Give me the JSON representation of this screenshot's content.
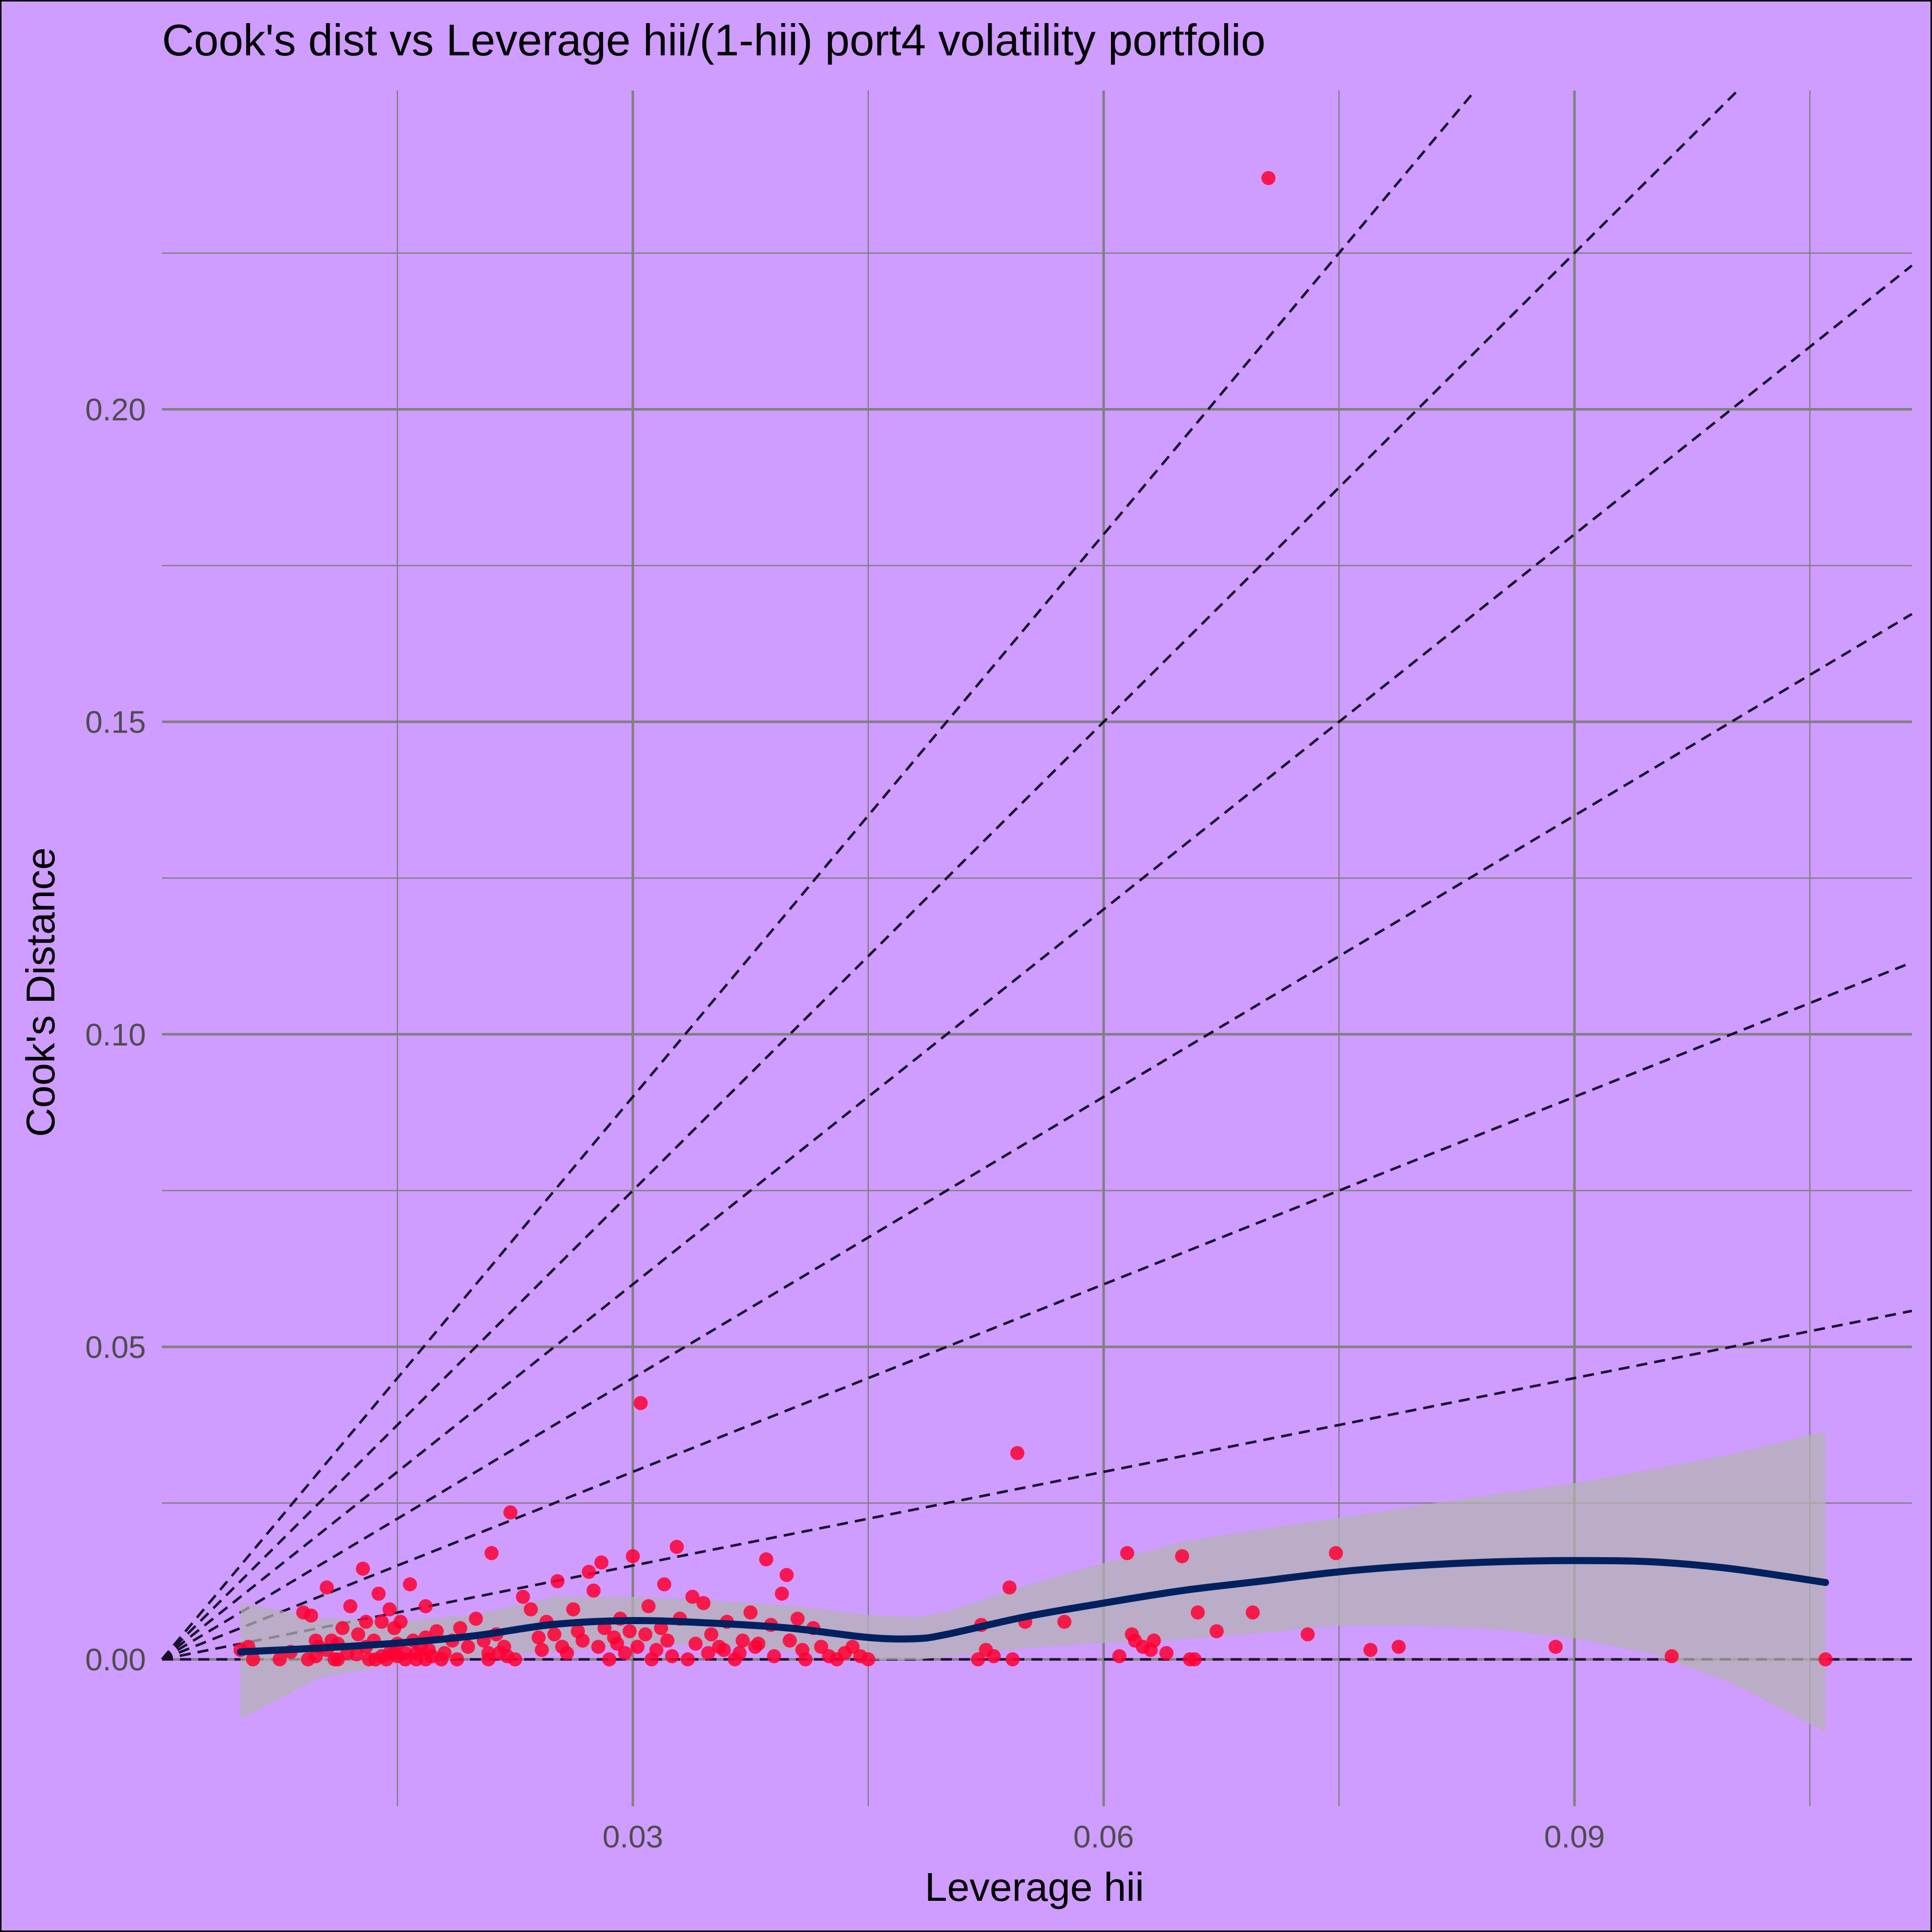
{
  "chart_data": {
    "type": "scatter",
    "title": "Cook's dist vs Leverage hii/(1-hii) port4 volatility portfolio",
    "xlabel": "Leverage hii",
    "ylabel": "Cook's Distance",
    "xlim": [
      0.0,
      0.1115
    ],
    "ylim": [
      -0.0235,
      0.251
    ],
    "x_ticks": [
      0.03,
      0.06,
      0.09
    ],
    "x_tick_labels": [
      "0.03",
      "0.06",
      "0.09"
    ],
    "y_ticks": [
      0.0,
      0.05,
      0.1,
      0.15,
      0.2
    ],
    "y_tick_labels": [
      "0.00",
      "0.05",
      "0.10",
      "0.15",
      "0.20"
    ],
    "grid": true,
    "legend": "none",
    "colors": {
      "background": "#cf9cff",
      "grid": "#808080",
      "points": "#ff0033",
      "smooth_line": "#002060",
      "confidence_band": "#b3b3b3",
      "reference_lines": "#1a0f2e"
    },
    "reference_slopes": [
      0.5,
      1,
      1.5,
      2,
      2.5,
      3
    ],
    "smooth_line": {
      "x": [
        0.005,
        0.01,
        0.015,
        0.02,
        0.025,
        0.03,
        0.035,
        0.04,
        0.045,
        0.048,
        0.05,
        0.055,
        0.06,
        0.065,
        0.07,
        0.075,
        0.08,
        0.085,
        0.09,
        0.095,
        0.1,
        0.106
      ],
      "y": [
        0.0012,
        0.0018,
        0.0026,
        0.0038,
        0.0056,
        0.0062,
        0.0058,
        0.005,
        0.0035,
        0.0033,
        0.004,
        0.0068,
        0.009,
        0.011,
        0.0125,
        0.014,
        0.015,
        0.0156,
        0.0158,
        0.0156,
        0.0145,
        0.0123
      ],
      "band_upper": [
        0.009,
        0.0066,
        0.006,
        0.0072,
        0.01,
        0.01,
        0.0094,
        0.0086,
        0.0071,
        0.0067,
        0.0076,
        0.0118,
        0.0154,
        0.0188,
        0.0208,
        0.0226,
        0.0246,
        0.0264,
        0.0282,
        0.0304,
        0.0328,
        0.0365
      ],
      "band_lower": [
        -0.0095,
        -0.003,
        -0.0008,
        0.0004,
        0.0012,
        0.0024,
        0.0022,
        0.0014,
        -0.0001,
        -0.0001,
        0.0004,
        0.0018,
        0.0026,
        0.0032,
        0.0042,
        0.0054,
        0.0054,
        0.0048,
        0.0034,
        0.0008,
        -0.0038,
        -0.0116
      ]
    },
    "points": {
      "x": [
        0.005,
        0.0055,
        0.0058,
        0.0075,
        0.0082,
        0.009,
        0.0093,
        0.0095,
        0.0098,
        0.01,
        0.0105,
        0.0108,
        0.011,
        0.0112,
        0.0115,
        0.0118,
        0.012,
        0.0125,
        0.0128,
        0.013,
        0.0132,
        0.0135,
        0.0138,
        0.014,
        0.0143,
        0.0145,
        0.0148,
        0.015,
        0.0152,
        0.0155,
        0.0158,
        0.016,
        0.0162,
        0.0165,
        0.0168,
        0.017,
        0.0172,
        0.0175,
        0.0178,
        0.018,
        0.0185,
        0.0188,
        0.019,
        0.0195,
        0.02,
        0.0205,
        0.0208,
        0.021,
        0.0213,
        0.0215,
        0.0218,
        0.022,
        0.0222,
        0.0225,
        0.023,
        0.0235,
        0.024,
        0.0242,
        0.0245,
        0.025,
        0.0252,
        0.0255,
        0.0258,
        0.0262,
        0.0265,
        0.0268,
        0.0272,
        0.0275,
        0.0278,
        0.028,
        0.0282,
        0.0285,
        0.0288,
        0.029,
        0.0292,
        0.0295,
        0.0298,
        0.03,
        0.0303,
        0.0305,
        0.0308,
        0.031,
        0.0312,
        0.0315,
        0.0318,
        0.032,
        0.0322,
        0.0325,
        0.0328,
        0.033,
        0.0335,
        0.0338,
        0.034,
        0.0345,
        0.0348,
        0.035,
        0.0355,
        0.0358,
        0.036,
        0.0365,
        0.0368,
        0.037,
        0.0375,
        0.0378,
        0.038,
        0.0385,
        0.0388,
        0.039,
        0.0395,
        0.0398,
        0.04,
        0.0405,
        0.0408,
        0.041,
        0.0415,
        0.042,
        0.0425,
        0.043,
        0.0435,
        0.044,
        0.0445,
        0.045,
        0.052,
        0.0522,
        0.0525,
        0.053,
        0.054,
        0.0542,
        0.0545,
        0.055,
        0.0575,
        0.061,
        0.0615,
        0.0618,
        0.062,
        0.0625,
        0.063,
        0.0632,
        0.064,
        0.065,
        0.0655,
        0.0658,
        0.066,
        0.0672,
        0.0695,
        0.0705,
        0.073,
        0.0748,
        0.077,
        0.0788,
        0.0888,
        0.0962,
        0.106,
        0.0105,
        0.014,
        0.0148,
        0.0162,
        0.0168,
        0.013,
        0.0155,
        0.0208,
        0.0168,
        0.0098,
        0.0112,
        0.0124,
        0.0136,
        0.0145,
        0.015
      ],
      "y": [
        0.0015,
        0.002,
        0.0,
        0.0,
        0.0012,
        0.0075,
        0.0,
        0.007,
        0.0005,
        0.002,
        0.0115,
        0.003,
        0.0,
        0.0025,
        0.005,
        0.001,
        0.0085,
        0.004,
        0.0145,
        0.002,
        0.0,
        0.003,
        0.0105,
        0.006,
        0.0,
        0.008,
        0.005,
        0.0025,
        0.006,
        0.0,
        0.012,
        0.003,
        0.001,
        0.002,
        0.0,
        0.0015,
        0.0005,
        0.0045,
        0.0,
        0.001,
        0.003,
        0.0,
        0.005,
        0.002,
        0.0065,
        0.003,
        0.0,
        0.017,
        0.004,
        0.001,
        0.002,
        0.0005,
        0.0235,
        0.0,
        0.01,
        0.008,
        0.0035,
        0.0015,
        0.006,
        0.004,
        0.0125,
        0.002,
        0.001,
        0.008,
        0.0045,
        0.003,
        0.014,
        0.011,
        0.002,
        0.0155,
        0.005,
        0.0,
        0.0035,
        0.0025,
        0.0065,
        0.001,
        0.0045,
        0.0165,
        0.002,
        0.041,
        0.004,
        0.0085,
        0.0,
        0.0015,
        0.005,
        0.012,
        0.003,
        0.0005,
        0.018,
        0.0065,
        0.0,
        0.01,
        0.0025,
        0.009,
        0.001,
        0.004,
        0.002,
        0.0015,
        0.006,
        0.0,
        0.001,
        0.003,
        0.0075,
        0.002,
        0.0025,
        0.016,
        0.0055,
        0.0005,
        0.0105,
        0.0135,
        0.003,
        0.0065,
        0.0015,
        0.0,
        0.005,
        0.002,
        0.0005,
        0.0,
        0.001,
        0.002,
        0.0005,
        0.0,
        0.0,
        0.0055,
        0.0015,
        0.0005,
        0.0115,
        0.0,
        0.033,
        0.006,
        0.006,
        0.0005,
        0.017,
        0.004,
        0.003,
        0.002,
        0.0015,
        0.003,
        0.001,
        0.0165,
        0.0,
        0.0,
        0.0075,
        0.0045,
        0.0075,
        0.237,
        0.004,
        0.017,
        0.0015,
        0.002,
        0.002,
        0.0005,
        0.0,
        0.0015,
        0.0005,
        0.001,
        0.0,
        0.0035,
        0.006,
        0.001,
        0.001,
        0.0085,
        0.003,
        0.0,
        0.0008,
        0.0,
        0.001,
        0.0005
      ]
    }
  }
}
